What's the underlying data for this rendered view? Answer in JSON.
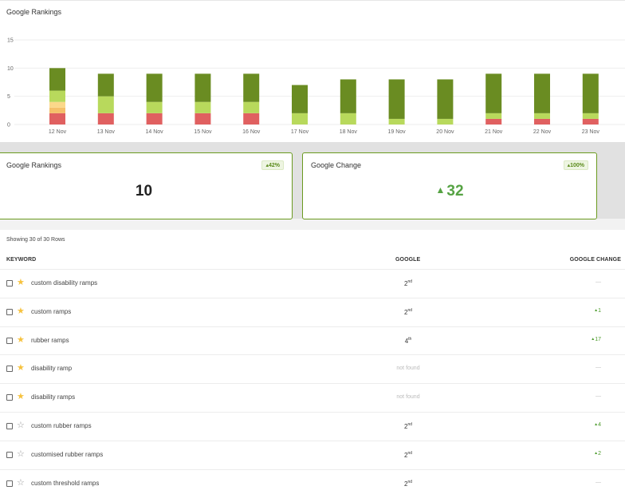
{
  "chart": {
    "title": "Google Rankings"
  },
  "chart_data": {
    "type": "bar",
    "stacked": true,
    "title": "Google Rankings",
    "categories": [
      "12 Nov",
      "13 Nov",
      "14 Nov",
      "15 Nov",
      "16 Nov",
      "17 Nov",
      "18 Nov",
      "19 Nov",
      "20 Nov",
      "21 Nov",
      "22 Nov",
      "23 Nov"
    ],
    "series": [
      {
        "color": "#e06060",
        "values": [
          2,
          2,
          2,
          2,
          2,
          0,
          0,
          0,
          0,
          1,
          1,
          1
        ]
      },
      {
        "color": "#f5c06a",
        "values": [
          1,
          0,
          0,
          0,
          0,
          0,
          0,
          0,
          0,
          0,
          0,
          0
        ]
      },
      {
        "color": "#fbd88a",
        "values": [
          1,
          0,
          0,
          0,
          0,
          0,
          0,
          0,
          0,
          0,
          0,
          0
        ]
      },
      {
        "color": "#b8d95c",
        "values": [
          2,
          3,
          2,
          2,
          2,
          2,
          2,
          1,
          1,
          1,
          1,
          1
        ]
      },
      {
        "color": "#6a8c22",
        "values": [
          4,
          4,
          5,
          5,
          5,
          5,
          6,
          7,
          7,
          7,
          7,
          7
        ]
      }
    ],
    "ylim": [
      0,
      15
    ],
    "yticks": [
      0,
      5,
      10,
      15
    ],
    "grid": true
  },
  "cards": {
    "rankings": {
      "title": "Google Rankings",
      "badge": "42%",
      "value": "10"
    },
    "change": {
      "title": "Google Change",
      "badge": "100%",
      "value": "32"
    }
  },
  "table": {
    "caption": "Showing 30 of 30 Rows",
    "headers": {
      "keyword": "KEYWORD",
      "google": "GOOGLE",
      "change": "GOOGLE CHANGE"
    },
    "rows": [
      {
        "keyword": "custom disability ramps",
        "starred": true,
        "rank": "2",
        "suffix": "nd",
        "change": "—",
        "up": false
      },
      {
        "keyword": "custom ramps",
        "starred": true,
        "rank": "2",
        "suffix": "nd",
        "change": "1",
        "up": true
      },
      {
        "keyword": "rubber ramps",
        "starred": true,
        "rank": "4",
        "suffix": "th",
        "change": "17",
        "up": true
      },
      {
        "keyword": "disability ramp",
        "starred": true,
        "rank": "not found",
        "suffix": "",
        "change": "—",
        "up": false
      },
      {
        "keyword": "disability ramps",
        "starred": true,
        "rank": "not found",
        "suffix": "",
        "change": "—",
        "up": false
      },
      {
        "keyword": "custom rubber ramps",
        "starred": false,
        "rank": "2",
        "suffix": "nd",
        "change": "4",
        "up": true
      },
      {
        "keyword": "customised rubber ramps",
        "starred": false,
        "rank": "2",
        "suffix": "nd",
        "change": "2",
        "up": true
      },
      {
        "keyword": "custom threshold ramps",
        "starred": false,
        "rank": "2",
        "suffix": "nd",
        "change": "—",
        "up": false
      }
    ]
  }
}
